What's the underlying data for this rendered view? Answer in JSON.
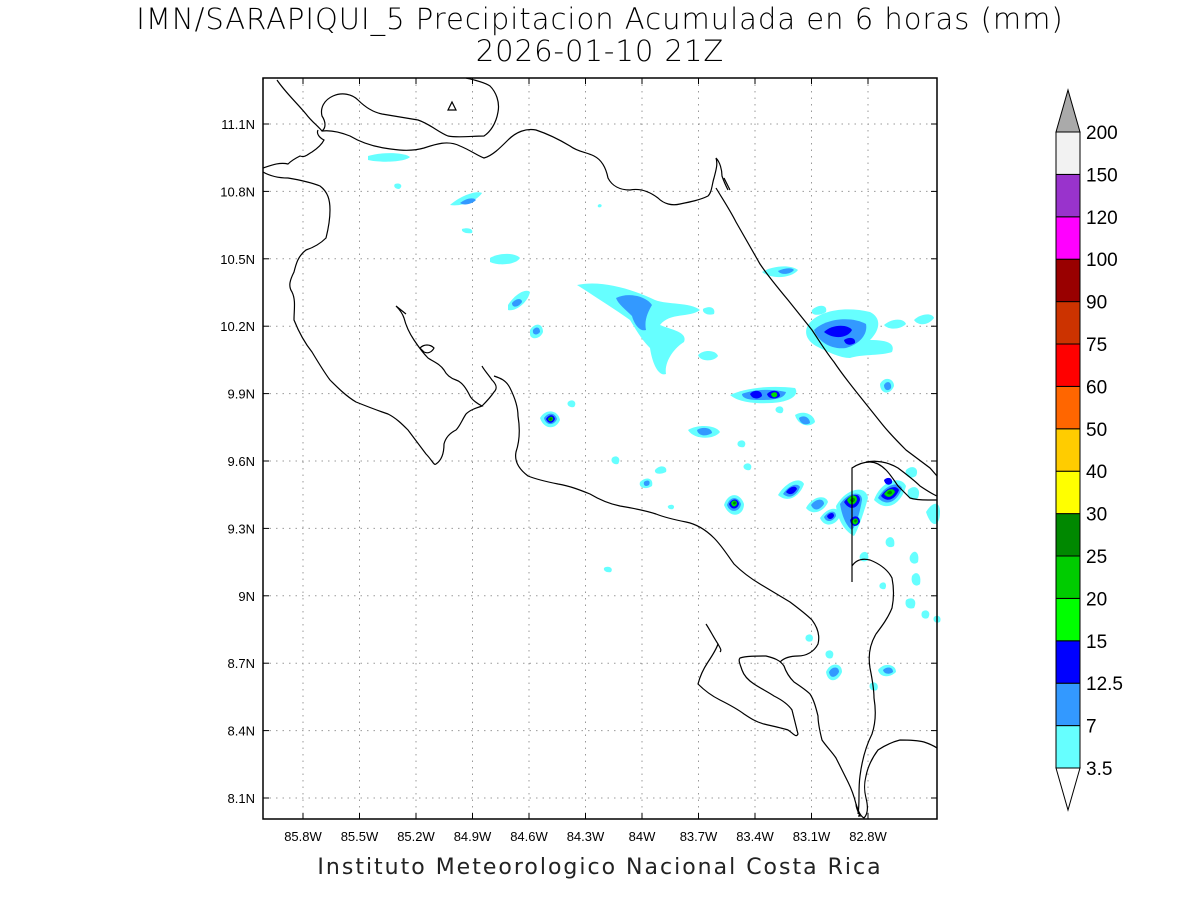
{
  "title": {
    "line1": "IMN/SARAPIQUI_5 Precipitacion Acumulada en 6 horas (mm)",
    "line2": "2026-01-10 21Z"
  },
  "footer": "Instituto Meteorologico Nacional Costa Rica",
  "map": {
    "lon_labels": [
      "85.8W",
      "85.5W",
      "85.2W",
      "84.9W",
      "84.6W",
      "84.3W",
      "84W",
      "83.7W",
      "83.4W",
      "83.1W",
      "82.8W"
    ],
    "lat_labels": [
      "11.1N",
      "10.8N",
      "10.5N",
      "10.2N",
      "9.9N",
      "9.6N",
      "9.3N",
      "9N",
      "8.7N",
      "8.4N",
      "8.1N"
    ],
    "grid": true
  },
  "colorbar": {
    "labels": [
      "3.5",
      "7",
      "12.5",
      "15",
      "20",
      "25",
      "30",
      "40",
      "50",
      "60",
      "75",
      "90",
      "100",
      "120",
      "150",
      "200"
    ],
    "colors": [
      "#66ffff",
      "#3399ff",
      "#0000ff",
      "#00ff00",
      "#00cc00",
      "#008800",
      "#ffff00",
      "#ffcc00",
      "#ff6600",
      "#ff0000",
      "#cc3300",
      "#990000",
      "#ff00ff",
      "#9933cc",
      "#f2f2f2",
      "#aaaaaa"
    ]
  }
}
